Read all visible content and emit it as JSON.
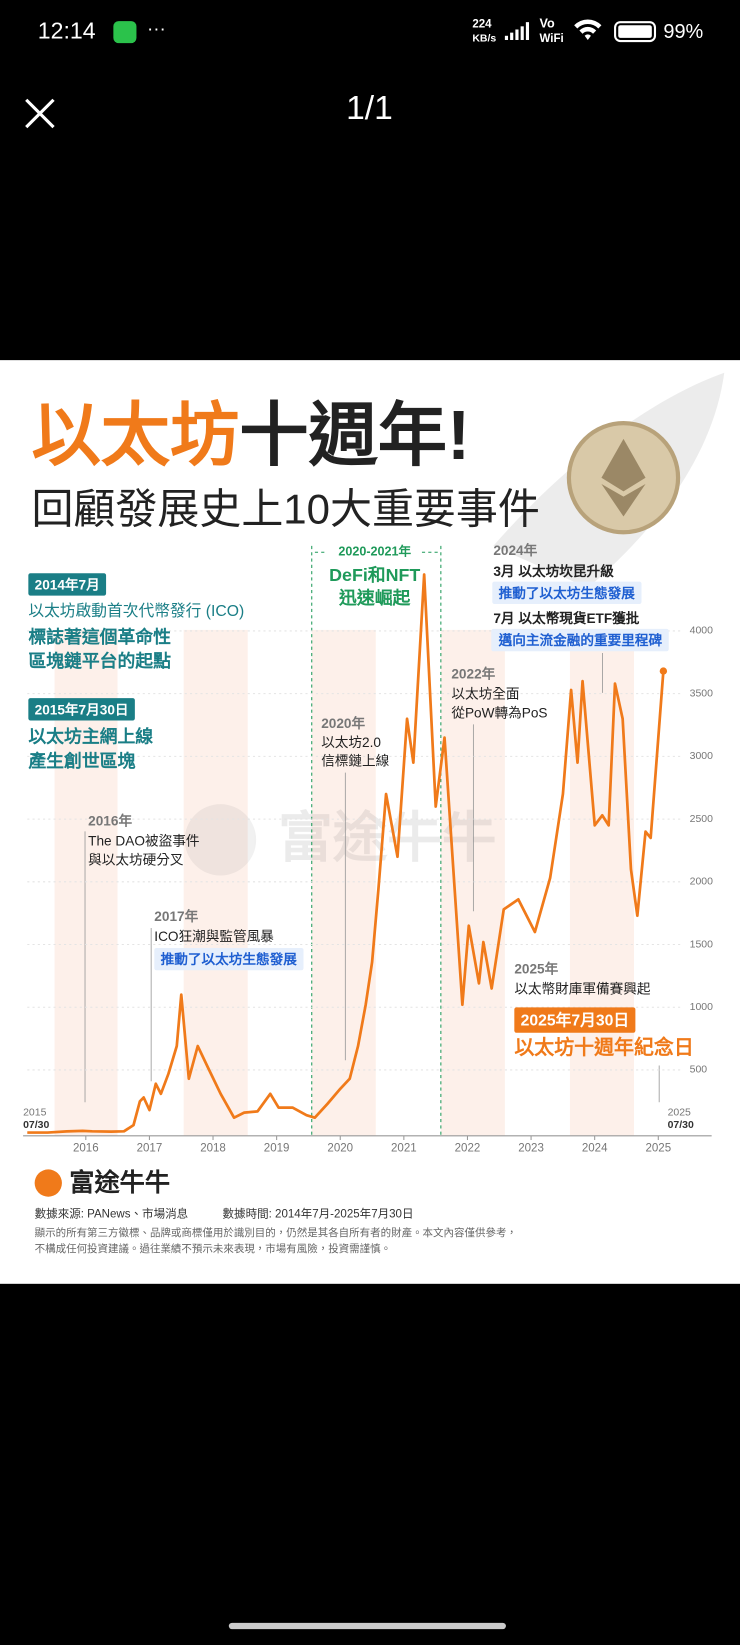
{
  "status_bar": {
    "time": "12:14",
    "more": "···",
    "net_speed": "224",
    "net_unit": "KB/s",
    "wifi_top": "Vo",
    "wifi_bottom": "WiFi",
    "battery": "99%"
  },
  "viewer": {
    "page_counter": "1/1"
  },
  "infographic": {
    "title_highlight": "以太坊",
    "title_rest": "十週年!",
    "subtitle": "回顧發展史上10大重要事件",
    "watermark": "富途牛牛",
    "annotations": [
      {
        "lines": [
          "2014年7月",
          "以太坊啟動首次代幣發行 (ICO)",
          "標誌著這個革命性",
          "區塊鏈平台的起點"
        ]
      },
      {
        "lines": [
          "2015年7月30日",
          "以太坊主網上線",
          "產生創世區塊"
        ]
      },
      {
        "lines": [
          "2016年",
          "The DAO被盜事件",
          "與以太坊硬分叉"
        ]
      },
      {
        "lines": [
          "2017年",
          "ICO狂潮與監管風暴",
          "推動了以太坊生態發展"
        ]
      },
      {
        "lines": [
          "2020-2021年",
          "DeFi和NFT",
          "迅速崛起"
        ]
      },
      {
        "lines": [
          "2020年",
          "以太坊2.0",
          "信標鏈上線"
        ]
      },
      {
        "lines": [
          "2022年",
          "以太坊全面",
          "從PoW轉為PoS"
        ]
      },
      {
        "lines": [
          "2024年",
          "3月 以太坊坎昆升級",
          "推動了以太坊生態發展",
          "7月 以太幣現貨ETF獲批",
          "邁向主流金融的重要里程碑"
        ]
      },
      {
        "lines": [
          "2025年",
          "以太幣財庫軍備賽興起",
          "2025年7月30日",
          "以太坊十週年紀念日"
        ]
      }
    ],
    "brand": "富途牛牛",
    "source": "數據來源: PANews、市場消息",
    "period": "數據時間: 2014年7月-2025年7月30日",
    "disclaimer": [
      "顯示的所有第三方徽標、品牌或商標僅用於識別目的，仍然是其各自所有者的財產。本文內容僅供參考，",
      "不構成任何投資建議。過往業績不預示未來表現，市場有風險，投資需謹慎。"
    ]
  },
  "chart_data": {
    "type": "line",
    "color": "#f07a1a",
    "x": [
      2015.58,
      2015.9,
      2016.2,
      2016.45,
      2016.6,
      2016.9,
      2017.1,
      2017.25,
      2017.35,
      2017.41,
      2017.5,
      2017.6,
      2017.68,
      2017.8,
      2017.93,
      2018.0,
      2018.12,
      2018.26,
      2018.42,
      2018.62,
      2018.83,
      2018.99,
      2019.2,
      2019.4,
      2019.53,
      2019.75,
      2019.97,
      2020.1,
      2020.3,
      2020.5,
      2020.65,
      2020.78,
      2020.9,
      2021.0,
      2021.1,
      2021.22,
      2021.4,
      2021.55,
      2021.65,
      2021.82,
      2022.0,
      2022.14,
      2022.42,
      2022.52,
      2022.68,
      2022.75,
      2022.88,
      2023.07,
      2023.3,
      2023.56,
      2023.8,
      2024.0,
      2024.13,
      2024.23,
      2024.31,
      2024.5,
      2024.62,
      2024.72,
      2024.82,
      2024.94,
      2025.07,
      2025.17,
      2025.3,
      2025.38,
      2025.58
    ],
    "values": [
      1,
      1,
      10,
      14,
      11,
      8,
      11,
      60,
      250,
      280,
      180,
      390,
      310,
      470,
      690,
      1100,
      430,
      690,
      520,
      310,
      120,
      160,
      170,
      310,
      200,
      200,
      140,
      120,
      230,
      350,
      430,
      690,
      1020,
      1360,
      1940,
      2700,
      2200,
      3300,
      2950,
      4450,
      2600,
      3150,
      1020,
      1650,
      1190,
      1520,
      1150,
      1780,
      1860,
      1600,
      2030,
      2700,
      3530,
      2950,
      3600,
      2450,
      2530,
      2450,
      3580,
      3300,
      2100,
      1730,
      2400,
      2350,
      3680
    ],
    "xlim": [
      2015.58,
      2025.58
    ],
    "ylim": [
      0,
      4000
    ],
    "xticks": [
      {
        "value": 2016.5,
        "label": "2016"
      },
      {
        "value": 2017.5,
        "label": "2017"
      },
      {
        "value": 2018.5,
        "label": "2018"
      },
      {
        "value": 2019.5,
        "label": "2019"
      },
      {
        "value": 2020.5,
        "label": "2020"
      },
      {
        "value": 2021.5,
        "label": "2021"
      },
      {
        "value": 2022.5,
        "label": "2022"
      },
      {
        "value": 2023.5,
        "label": "2023"
      },
      {
        "value": 2024.5,
        "label": "2024"
      },
      {
        "value": 2025.5,
        "label": "2025"
      }
    ],
    "yticks": [
      500,
      1000,
      1500,
      2000,
      2500,
      3000,
      3500,
      4000
    ],
    "grid": true,
    "start_label": [
      "2015",
      "07/30"
    ],
    "end_label": [
      "2025",
      "07/30"
    ]
  }
}
